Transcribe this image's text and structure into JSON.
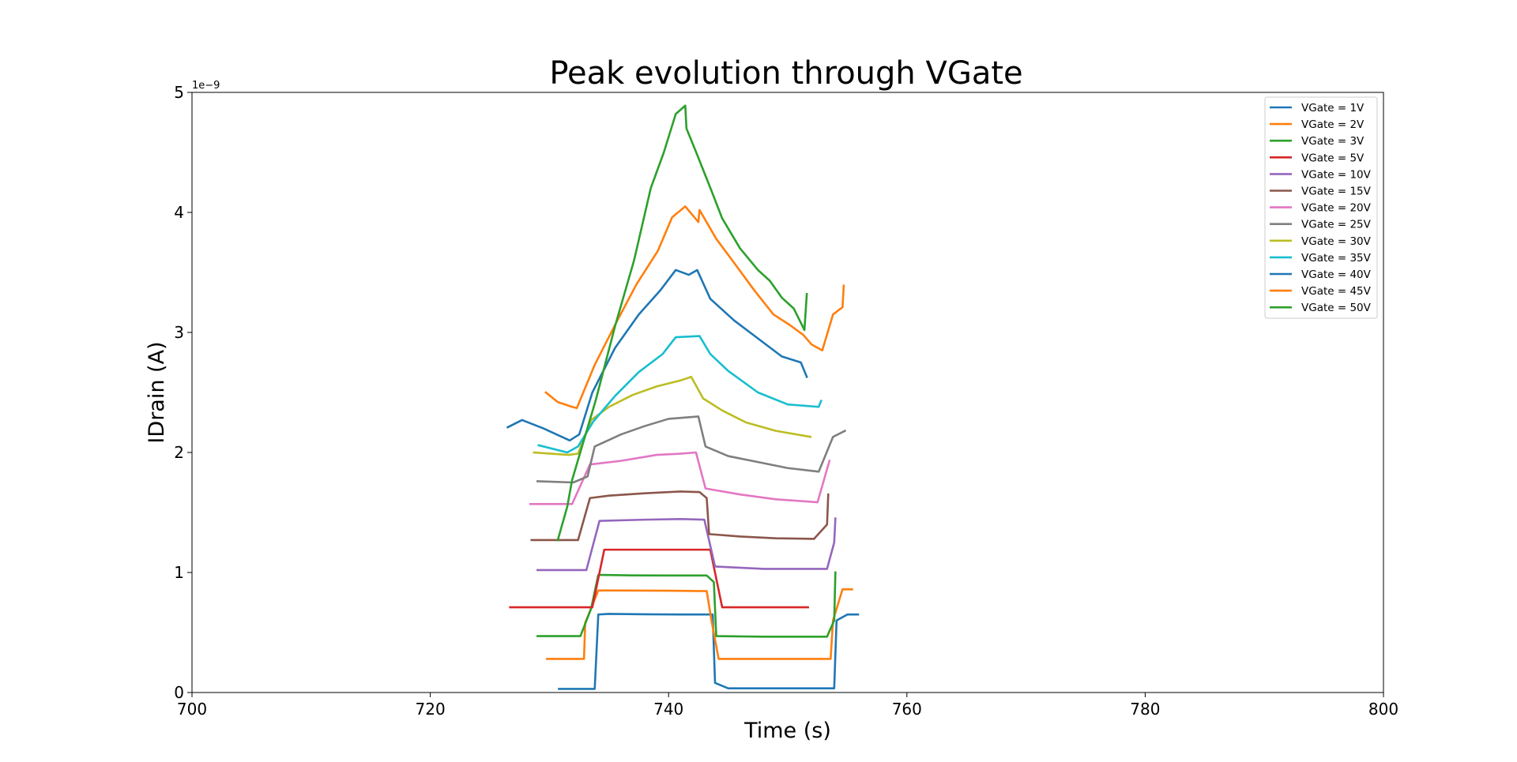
{
  "chart_data": {
    "type": "line",
    "title": "Peak evolution through VGate",
    "xlabel": "Time (s)",
    "ylabel": "IDrain (A)",
    "y_offset_label": "1e−9",
    "xlim": [
      700,
      800
    ],
    "ylim": [
      0,
      5
    ],
    "x_ticks": [
      700,
      720,
      740,
      760,
      780,
      800
    ],
    "y_ticks": [
      0,
      1,
      2,
      3,
      4,
      5
    ],
    "x_tick_labels": [
      "700",
      "720",
      "740",
      "760",
      "780",
      "800"
    ],
    "y_tick_labels": [
      "0",
      "1",
      "2",
      "3",
      "4",
      "5"
    ],
    "y_unit_note": "values in units of 1e-9 A",
    "grid": false,
    "legend_position": "top-right",
    "series": [
      {
        "name": "VGate = 1V",
        "color": "#1f77b4",
        "points": [
          [
            730.8,
            0.03
          ],
          [
            733.8,
            0.03
          ],
          [
            734.1,
            0.65
          ],
          [
            735,
            0.655
          ],
          [
            738,
            0.652
          ],
          [
            741,
            0.65
          ],
          [
            743.7,
            0.65
          ],
          [
            743.9,
            0.08
          ],
          [
            745,
            0.035
          ],
          [
            750,
            0.035
          ],
          [
            753.9,
            0.035
          ],
          [
            754.1,
            0.6
          ],
          [
            755,
            0.65
          ],
          [
            755.9,
            0.65
          ]
        ]
      },
      {
        "name": "VGate = 2V",
        "color": "#ff7f0e",
        "points": [
          [
            729.8,
            0.28
          ],
          [
            732.9,
            0.28
          ],
          [
            733,
            0.58
          ],
          [
            734.1,
            0.85
          ],
          [
            736,
            0.85
          ],
          [
            740,
            0.848
          ],
          [
            743.2,
            0.845
          ],
          [
            743.6,
            0.6
          ],
          [
            744.2,
            0.28
          ],
          [
            748,
            0.28
          ],
          [
            753.6,
            0.28
          ],
          [
            753.8,
            0.6
          ],
          [
            754.6,
            0.86
          ],
          [
            755.4,
            0.86
          ]
        ]
      },
      {
        "name": "VGate = 3V",
        "color": "#2ca02c",
        "points": [
          [
            729,
            0.47
          ],
          [
            732.6,
            0.47
          ],
          [
            733.5,
            0.7
          ],
          [
            734.1,
            0.98
          ],
          [
            737,
            0.976
          ],
          [
            740,
            0.975
          ],
          [
            743.2,
            0.975
          ],
          [
            743.8,
            0.92
          ],
          [
            744,
            0.47
          ],
          [
            748,
            0.465
          ],
          [
            753.3,
            0.465
          ],
          [
            753.9,
            0.6
          ],
          [
            754,
            1.0
          ]
        ]
      },
      {
        "name": "VGate = 5V",
        "color": "#d62728",
        "points": [
          [
            726.7,
            0.71
          ],
          [
            730,
            0.71
          ],
          [
            733.6,
            0.71
          ],
          [
            734.6,
            1.19
          ],
          [
            738,
            1.19
          ],
          [
            742,
            1.19
          ],
          [
            743.5,
            1.19
          ],
          [
            744.5,
            0.71
          ],
          [
            748,
            0.71
          ],
          [
            751.7,
            0.71
          ]
        ]
      },
      {
        "name": "VGate = 10V",
        "color": "#9467bd",
        "points": [
          [
            729,
            1.02
          ],
          [
            733.1,
            1.02
          ],
          [
            734.2,
            1.43
          ],
          [
            738,
            1.44
          ],
          [
            741,
            1.445
          ],
          [
            743,
            1.44
          ],
          [
            743.9,
            1.05
          ],
          [
            748,
            1.03
          ],
          [
            753.3,
            1.03
          ],
          [
            753.9,
            1.25
          ],
          [
            754,
            1.45
          ]
        ]
      },
      {
        "name": "VGate = 15V",
        "color": "#8c564b",
        "points": [
          [
            728.5,
            1.27
          ],
          [
            732.4,
            1.27
          ],
          [
            733.4,
            1.62
          ],
          [
            735,
            1.64
          ],
          [
            738,
            1.66
          ],
          [
            741,
            1.675
          ],
          [
            742.6,
            1.67
          ],
          [
            743.2,
            1.62
          ],
          [
            743.4,
            1.32
          ],
          [
            746,
            1.3
          ],
          [
            749,
            1.285
          ],
          [
            752.2,
            1.28
          ],
          [
            753.3,
            1.4
          ],
          [
            753.4,
            1.65
          ]
        ]
      },
      {
        "name": "VGate = 20V",
        "color": "#e377c2",
        "points": [
          [
            728.4,
            1.57
          ],
          [
            731.9,
            1.57
          ],
          [
            733.4,
            1.9
          ],
          [
            736,
            1.93
          ],
          [
            739,
            1.98
          ],
          [
            741,
            1.99
          ],
          [
            742.3,
            2.0
          ],
          [
            743.1,
            1.7
          ],
          [
            746,
            1.65
          ],
          [
            749,
            1.61
          ],
          [
            752.5,
            1.585
          ],
          [
            753.5,
            1.93
          ]
        ]
      },
      {
        "name": "VGate = 25V",
        "color": "#7f7f7f",
        "points": [
          [
            729,
            1.76
          ],
          [
            732,
            1.75
          ],
          [
            733.2,
            1.8
          ],
          [
            733.8,
            2.05
          ],
          [
            736,
            2.15
          ],
          [
            738,
            2.22
          ],
          [
            740,
            2.28
          ],
          [
            742.5,
            2.3
          ],
          [
            743.1,
            2.05
          ],
          [
            745,
            1.97
          ],
          [
            747.5,
            1.92
          ],
          [
            750,
            1.87
          ],
          [
            752.6,
            1.84
          ],
          [
            753.8,
            2.13
          ],
          [
            754.8,
            2.18
          ]
        ]
      },
      {
        "name": "VGate = 30V",
        "color": "#bcbd22",
        "points": [
          [
            728.7,
            2.0
          ],
          [
            731.6,
            1.98
          ],
          [
            732.4,
            1.99
          ],
          [
            733.5,
            2.27
          ],
          [
            735,
            2.38
          ],
          [
            737,
            2.48
          ],
          [
            739,
            2.55
          ],
          [
            741,
            2.6
          ],
          [
            741.9,
            2.63
          ],
          [
            742.9,
            2.45
          ],
          [
            744.5,
            2.35
          ],
          [
            746.5,
            2.25
          ],
          [
            749,
            2.18
          ],
          [
            751.9,
            2.13
          ]
        ]
      },
      {
        "name": "VGate = 35V",
        "color": "#17becf",
        "points": [
          [
            729.1,
            2.06
          ],
          [
            731.5,
            2.0
          ],
          [
            732.4,
            2.05
          ],
          [
            733.7,
            2.26
          ],
          [
            735.5,
            2.47
          ],
          [
            737.5,
            2.67
          ],
          [
            739.5,
            2.82
          ],
          [
            740.6,
            2.96
          ],
          [
            742.6,
            2.97
          ],
          [
            743.5,
            2.82
          ],
          [
            745,
            2.68
          ],
          [
            747.5,
            2.5
          ],
          [
            750,
            2.4
          ],
          [
            752.6,
            2.38
          ],
          [
            752.8,
            2.43
          ]
        ]
      },
      {
        "name": "VGate = 40V",
        "color": "#1f77b4",
        "points": [
          [
            726.5,
            2.21
          ],
          [
            727.7,
            2.27
          ],
          [
            729.5,
            2.2
          ],
          [
            731.7,
            2.1
          ],
          [
            732.5,
            2.15
          ],
          [
            733.6,
            2.5
          ],
          [
            735.5,
            2.87
          ],
          [
            737.5,
            3.15
          ],
          [
            739.3,
            3.35
          ],
          [
            740.6,
            3.52
          ],
          [
            741.7,
            3.48
          ],
          [
            742.4,
            3.52
          ],
          [
            743.5,
            3.28
          ],
          [
            745.5,
            3.1
          ],
          [
            747.5,
            2.95
          ],
          [
            749.5,
            2.8
          ],
          [
            751.1,
            2.75
          ],
          [
            751.6,
            2.63
          ]
        ]
      },
      {
        "name": "VGate = 45V",
        "color": "#ff7f0e",
        "points": [
          [
            729.7,
            2.5
          ],
          [
            730.7,
            2.42
          ],
          [
            731.9,
            2.38
          ],
          [
            732.3,
            2.37
          ],
          [
            733.8,
            2.73
          ],
          [
            735.7,
            3.1
          ],
          [
            737.3,
            3.4
          ],
          [
            739.1,
            3.68
          ],
          [
            740.3,
            3.96
          ],
          [
            741.4,
            4.05
          ],
          [
            742.5,
            3.92
          ],
          [
            742.6,
            4.02
          ],
          [
            744,
            3.78
          ],
          [
            745.5,
            3.58
          ],
          [
            747.2,
            3.35
          ],
          [
            748.8,
            3.15
          ],
          [
            750.2,
            3.06
          ],
          [
            751.3,
            2.98
          ],
          [
            752,
            2.9
          ],
          [
            752.9,
            2.85
          ],
          [
            753.8,
            3.15
          ],
          [
            754.6,
            3.21
          ],
          [
            754.7,
            3.39
          ]
        ]
      },
      {
        "name": "VGate = 50V",
        "color": "#2ca02c",
        "points": [
          [
            730.7,
            1.27
          ],
          [
            731.5,
            1.55
          ],
          [
            731.9,
            1.77
          ],
          [
            733.9,
            2.44
          ],
          [
            735.5,
            3.05
          ],
          [
            737.1,
            3.6
          ],
          [
            738.5,
            4.2
          ],
          [
            739.6,
            4.5
          ],
          [
            740.6,
            4.82
          ],
          [
            741.4,
            4.89
          ],
          [
            741.5,
            4.7
          ],
          [
            742.4,
            4.48
          ],
          [
            743.6,
            4.18
          ],
          [
            744.5,
            3.95
          ],
          [
            746,
            3.7
          ],
          [
            747.5,
            3.52
          ],
          [
            748.5,
            3.43
          ],
          [
            749.5,
            3.29
          ],
          [
            750.5,
            3.2
          ],
          [
            751.4,
            3.02
          ],
          [
            751.6,
            3.32
          ]
        ]
      }
    ]
  }
}
